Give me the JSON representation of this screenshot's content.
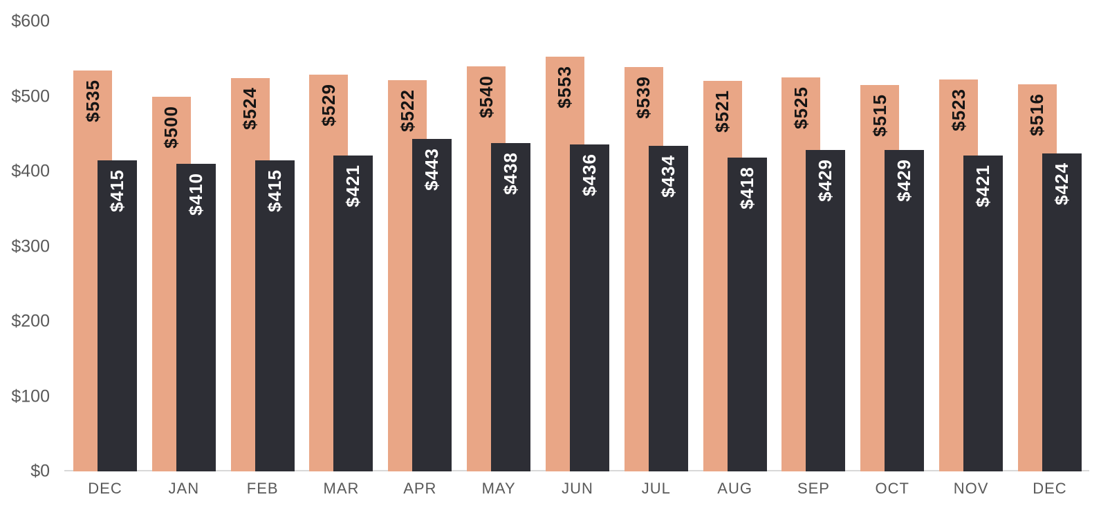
{
  "chart_data": {
    "type": "bar",
    "title": "",
    "categories": [
      "DEC",
      "JAN",
      "FEB",
      "MAR",
      "APR",
      "MAY",
      "JUN",
      "JUL",
      "AUG",
      "SEP",
      "OCT",
      "NOV",
      "DEC"
    ],
    "series": [
      {
        "name": "series-1",
        "color": "#e9a686",
        "label_color": "#141414",
        "values": [
          535,
          500,
          524,
          529,
          522,
          540,
          553,
          539,
          521,
          525,
          515,
          523,
          516
        ]
      },
      {
        "name": "series-2",
        "color": "#2d2e35",
        "label_color": "#ffffff",
        "values": [
          415,
          410,
          415,
          421,
          443,
          438,
          436,
          434,
          418,
          429,
          429,
          421,
          424
        ]
      }
    ],
    "value_prefix": "$",
    "y_ticks": [
      "$0",
      "$100",
      "$200",
      "$300",
      "$400",
      "$500",
      "$600"
    ],
    "ylim": [
      0,
      600
    ],
    "grid": false,
    "legend_position": "none",
    "colors": {
      "axis_text": "#595959",
      "axis_line": "#d8d8d8",
      "background": "#ffffff"
    }
  }
}
